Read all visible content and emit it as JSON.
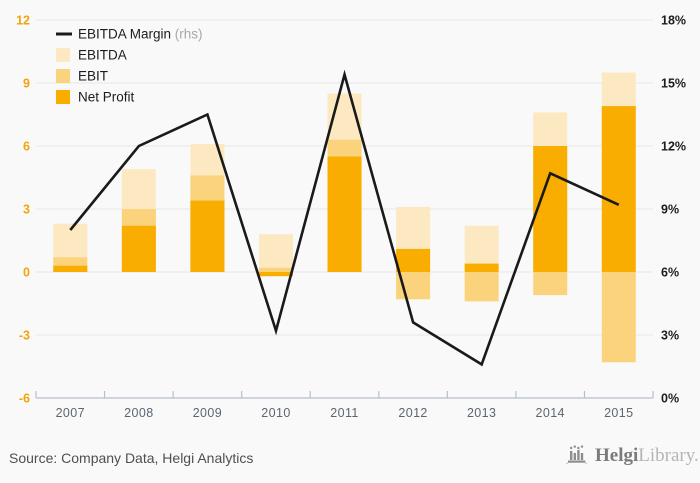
{
  "chart_data": {
    "type": "bar+line",
    "categories": [
      "2007",
      "2008",
      "2009",
      "2010",
      "2011",
      "2012",
      "2013",
      "2014",
      "2015"
    ],
    "series": [
      {
        "name": "EBITDA",
        "type": "bar",
        "color_key": "ebitda",
        "values": [
          2.3,
          4.9,
          6.1,
          1.8,
          8.5,
          3.1,
          2.2,
          7.6,
          9.5
        ]
      },
      {
        "name": "EBIT",
        "type": "bar",
        "color_key": "ebit",
        "values": [
          0.7,
          3.0,
          4.6,
          0.2,
          6.3,
          -1.3,
          -1.4,
          -1.1,
          -4.3
        ]
      },
      {
        "name": "Net Profit",
        "type": "bar",
        "color_key": "net_profit",
        "values": [
          0.3,
          2.2,
          3.4,
          -0.2,
          5.5,
          1.1,
          0.4,
          6.0,
          7.9
        ]
      },
      {
        "name": "EBITDA Margin",
        "type": "line",
        "axis": "rhs",
        "color_key": "margin_line",
        "values_pct": [
          8.0,
          12.0,
          13.5,
          3.2,
          15.4,
          3.6,
          1.6,
          10.7,
          9.2
        ]
      }
    ],
    "left_axis": {
      "min": -6,
      "max": 12,
      "values": [
        12,
        9,
        6,
        3,
        0,
        -3,
        -6
      ],
      "labels": [
        "12",
        "9",
        "6",
        "3",
        "0",
        "-3",
        "-6"
      ]
    },
    "right_axis": {
      "min_label": "0%",
      "max_label": "18%",
      "labels": [
        "18%",
        "15%",
        "12%",
        "9%",
        "6%",
        "3%",
        "0%"
      ]
    },
    "grid": true,
    "legend_position": "top-left"
  },
  "legend": {
    "items": [
      {
        "label": "EBITDA Margin",
        "suffix": "(rhs)",
        "swatch": "line",
        "color_key": "margin_line"
      },
      {
        "label": "EBITDA",
        "swatch": "square",
        "color_key": "ebitda"
      },
      {
        "label": "EBIT",
        "swatch": "square",
        "color_key": "ebit"
      },
      {
        "label": "Net Profit",
        "swatch": "square",
        "color_key": "net_profit"
      }
    ]
  },
  "colors": {
    "ebitda": "#fce9c2",
    "ebit": "#fbd37d",
    "net_profit": "#f8ad00",
    "margin_line": "#1a1a1a",
    "grid": "#e7e7e7",
    "axis": "#b7bfce",
    "left_labels": "#f2a40c",
    "right_labels": "#1d1d1d",
    "year_labels": "#5d6670",
    "background": "#f9f9f9",
    "logo_gray": "#8d8d8d"
  },
  "footer": {
    "source": "Source: Company Data, Helgi Analytics",
    "logo_bold": "Helgi",
    "logo_light": "Library."
  }
}
